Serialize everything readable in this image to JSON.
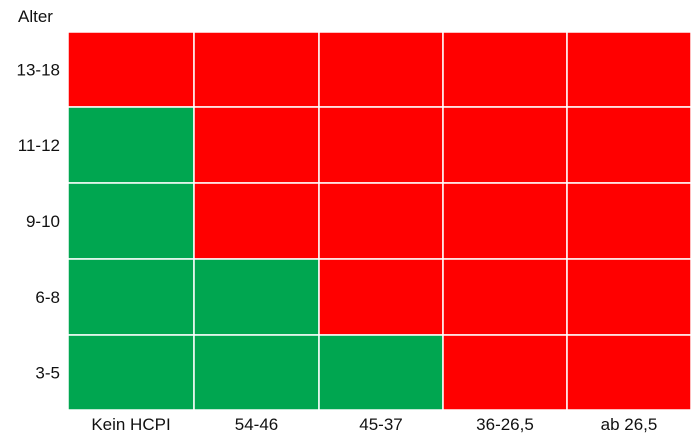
{
  "chart_data": {
    "type": "heatmap",
    "title": "",
    "xlabel": "",
    "ylabel": "Alter",
    "x_categories": [
      "Kein HCPI",
      "54-46",
      "45-37",
      "36-26,5",
      "ab 26,5"
    ],
    "y_categories": [
      "13-18",
      "11-12",
      "9-10",
      "6-8",
      "3-5"
    ],
    "values": [
      [
        "red",
        "red",
        "red",
        "red",
        "red"
      ],
      [
        "green",
        "red",
        "red",
        "red",
        "red"
      ],
      [
        "green",
        "red",
        "red",
        "red",
        "red"
      ],
      [
        "green",
        "green",
        "red",
        "red",
        "red"
      ],
      [
        "green",
        "green",
        "green",
        "red",
        "red"
      ]
    ],
    "colors": {
      "red": "#ff0000",
      "green": "#00a650"
    },
    "grid": true,
    "legend": false
  }
}
